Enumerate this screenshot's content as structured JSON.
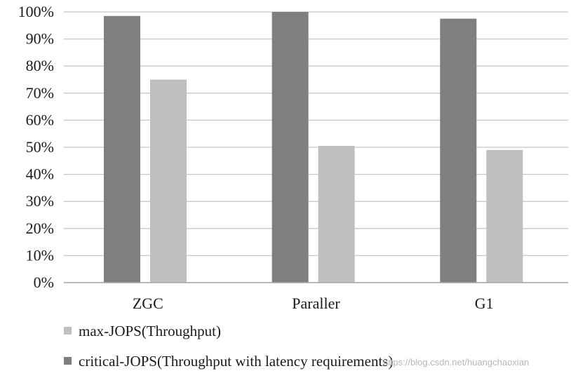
{
  "chart_data": {
    "type": "bar",
    "categories": [
      "ZGC",
      "Paraller",
      "G1"
    ],
    "series": [
      {
        "name": "critical-JOPS(Throughput with latency requirements)",
        "color": "#7f7f7f",
        "values": [
          98.5,
          100,
          97.5
        ]
      },
      {
        "name": "max-JOPS(Throughput)",
        "color": "#bfbfbf",
        "values": [
          75,
          50.5,
          49
        ]
      }
    ],
    "y_ticks": [
      "0%",
      "10%",
      "20%",
      "30%",
      "40%",
      "50%",
      "60%",
      "70%",
      "80%",
      "90%",
      "100%"
    ],
    "ylim": [
      0,
      100
    ],
    "grid": true,
    "legend": {
      "placement": "bottom-left",
      "entries": [
        {
          "label": "max-JOPS(Throughput)",
          "color": "#bfbfbf"
        },
        {
          "label": "critical-JOPS(Throughput with latency requirements)",
          "color": "#7f7f7f"
        }
      ]
    },
    "watermark": "https://blog.csdn.net/huangchaoxian"
  }
}
